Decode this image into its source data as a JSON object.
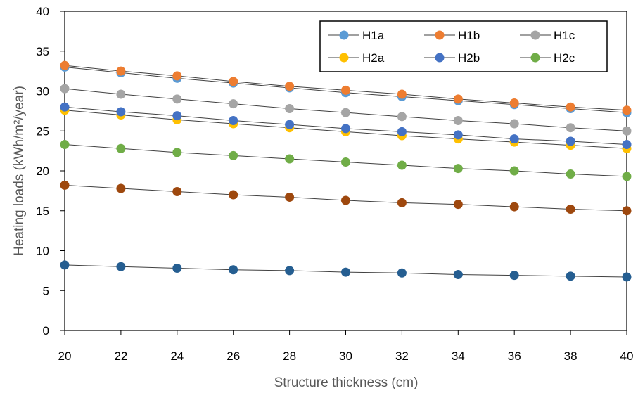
{
  "chart_data": {
    "type": "scatter",
    "title": "",
    "xlabel": "Structure thickness (cm)",
    "ylabel": "Heating loads (kWh/m²/year)",
    "xlim": [
      20,
      40
    ],
    "ylim": [
      0,
      40
    ],
    "x_ticks": [
      "20",
      "22",
      "24",
      "26",
      "28",
      "30",
      "32",
      "34",
      "36",
      "38",
      "40"
    ],
    "y_ticks": [
      "0",
      "5",
      "10",
      "15",
      "20",
      "25",
      "30",
      "35",
      "40"
    ],
    "grid": false,
    "legend_position": "top-right",
    "x": [
      20,
      22,
      24,
      26,
      28,
      30,
      32,
      34,
      36,
      38,
      40
    ],
    "series": [
      {
        "name": "H1a",
        "color": "#5B9BD5",
        "values": [
          33.0,
          32.3,
          31.6,
          31.0,
          30.4,
          29.8,
          29.3,
          28.8,
          28.3,
          27.8,
          27.3
        ]
      },
      {
        "name": "H1b",
        "color": "#ED7D31",
        "values": [
          33.2,
          32.5,
          31.9,
          31.2,
          30.6,
          30.1,
          29.6,
          29.0,
          28.5,
          28.0,
          27.6
        ]
      },
      {
        "name": "H1c",
        "color": "#A5A5A5",
        "values": [
          30.3,
          29.6,
          29.0,
          28.4,
          27.8,
          27.3,
          26.8,
          26.3,
          25.9,
          25.4,
          25.0
        ]
      },
      {
        "name": "H2a",
        "color": "#FFC000",
        "values": [
          27.6,
          27.0,
          26.4,
          25.9,
          25.4,
          24.9,
          24.4,
          24.0,
          23.6,
          23.2,
          22.8
        ]
      },
      {
        "name": "H2b",
        "color": "#4472C4",
        "values": [
          28.0,
          27.4,
          26.9,
          26.3,
          25.8,
          25.3,
          24.9,
          24.5,
          24.0,
          23.7,
          23.3
        ]
      },
      {
        "name": "H2c",
        "color": "#70AD47",
        "values": [
          23.3,
          22.8,
          22.3,
          21.9,
          21.5,
          21.1,
          20.7,
          20.3,
          20.0,
          19.6,
          19.3
        ]
      },
      {
        "color": "#9E480E",
        "values": [
          18.2,
          17.8,
          17.4,
          17.0,
          16.7,
          16.3,
          16.0,
          15.8,
          15.5,
          15.2,
          15.0
        ]
      },
      {
        "color": "#255E91",
        "values": [
          8.2,
          8.0,
          7.8,
          7.6,
          7.5,
          7.3,
          7.2,
          7.0,
          6.9,
          6.8,
          6.7
        ]
      }
    ],
    "line_color": "#404040"
  }
}
